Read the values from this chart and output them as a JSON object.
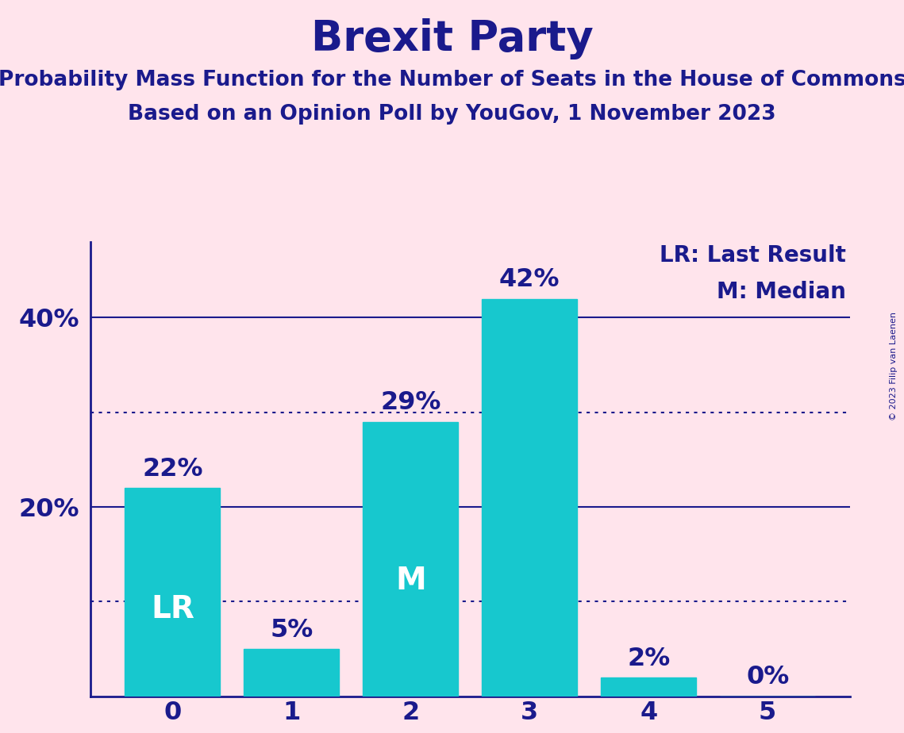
{
  "title": "Brexit Party",
  "subtitle1": "Probability Mass Function for the Number of Seats in the House of Commons",
  "subtitle2": "Based on an Opinion Poll by YouGov, 1 November 2023",
  "copyright": "© 2023 Filip van Laenen",
  "categories": [
    0,
    1,
    2,
    3,
    4,
    5
  ],
  "values": [
    22,
    5,
    29,
    42,
    2,
    0
  ],
  "bar_color": "#17C8CE",
  "background_color": "#FFE4EC",
  "title_color": "#1a1a8c",
  "bar_label_color_outside": "#1a1a8c",
  "bar_label_color_inside": "#ffffff",
  "axis_color": "#1a1a8c",
  "solid_hlines": [
    20,
    40
  ],
  "dotted_hlines": [
    10,
    30
  ],
  "hline_color": "#1a1a8c",
  "ylim": [
    0,
    48
  ],
  "lr_bar": 0,
  "median_bar": 2,
  "legend_lr": "LR: Last Result",
  "legend_m": "M: Median",
  "title_fontsize": 38,
  "subtitle_fontsize": 19,
  "bar_label_fontsize": 23,
  "ytick_fontsize": 23,
  "xtick_fontsize": 23,
  "inside_label_fontsize": 28,
  "legend_fontsize": 20
}
